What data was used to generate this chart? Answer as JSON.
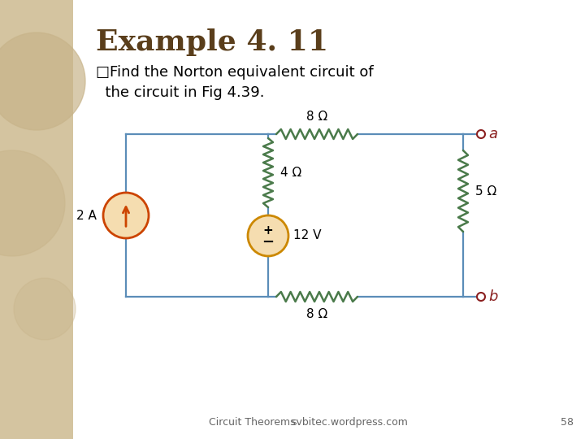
{
  "title": "Example 4. 11",
  "subtitle_line1": "□Find the Norton equivalent circuit of",
  "subtitle_line2": "  the circuit in Fig 4.39.",
  "footer_left": "Circuit Theorems",
  "footer_right": "svbitec.wordpress.com",
  "footer_page": "58",
  "background_color": "#ffffff",
  "title_color": "#5a3e1b",
  "text_color": "#000000",
  "wire_color": "#5b8db8",
  "resistor_color": "#4a7a4a",
  "current_source_color": "#cc4400",
  "current_source_fill": "#f5ddb0",
  "voltage_source_color": "#cc8800",
  "voltage_source_fill": "#f5ddb0",
  "terminal_color": "#8b2020",
  "slide_bg_left": "#d4c4a0",
  "deco_circle_color": "#c8b48a",
  "omega_symbol": "Ω",
  "footer_color": "#666666"
}
